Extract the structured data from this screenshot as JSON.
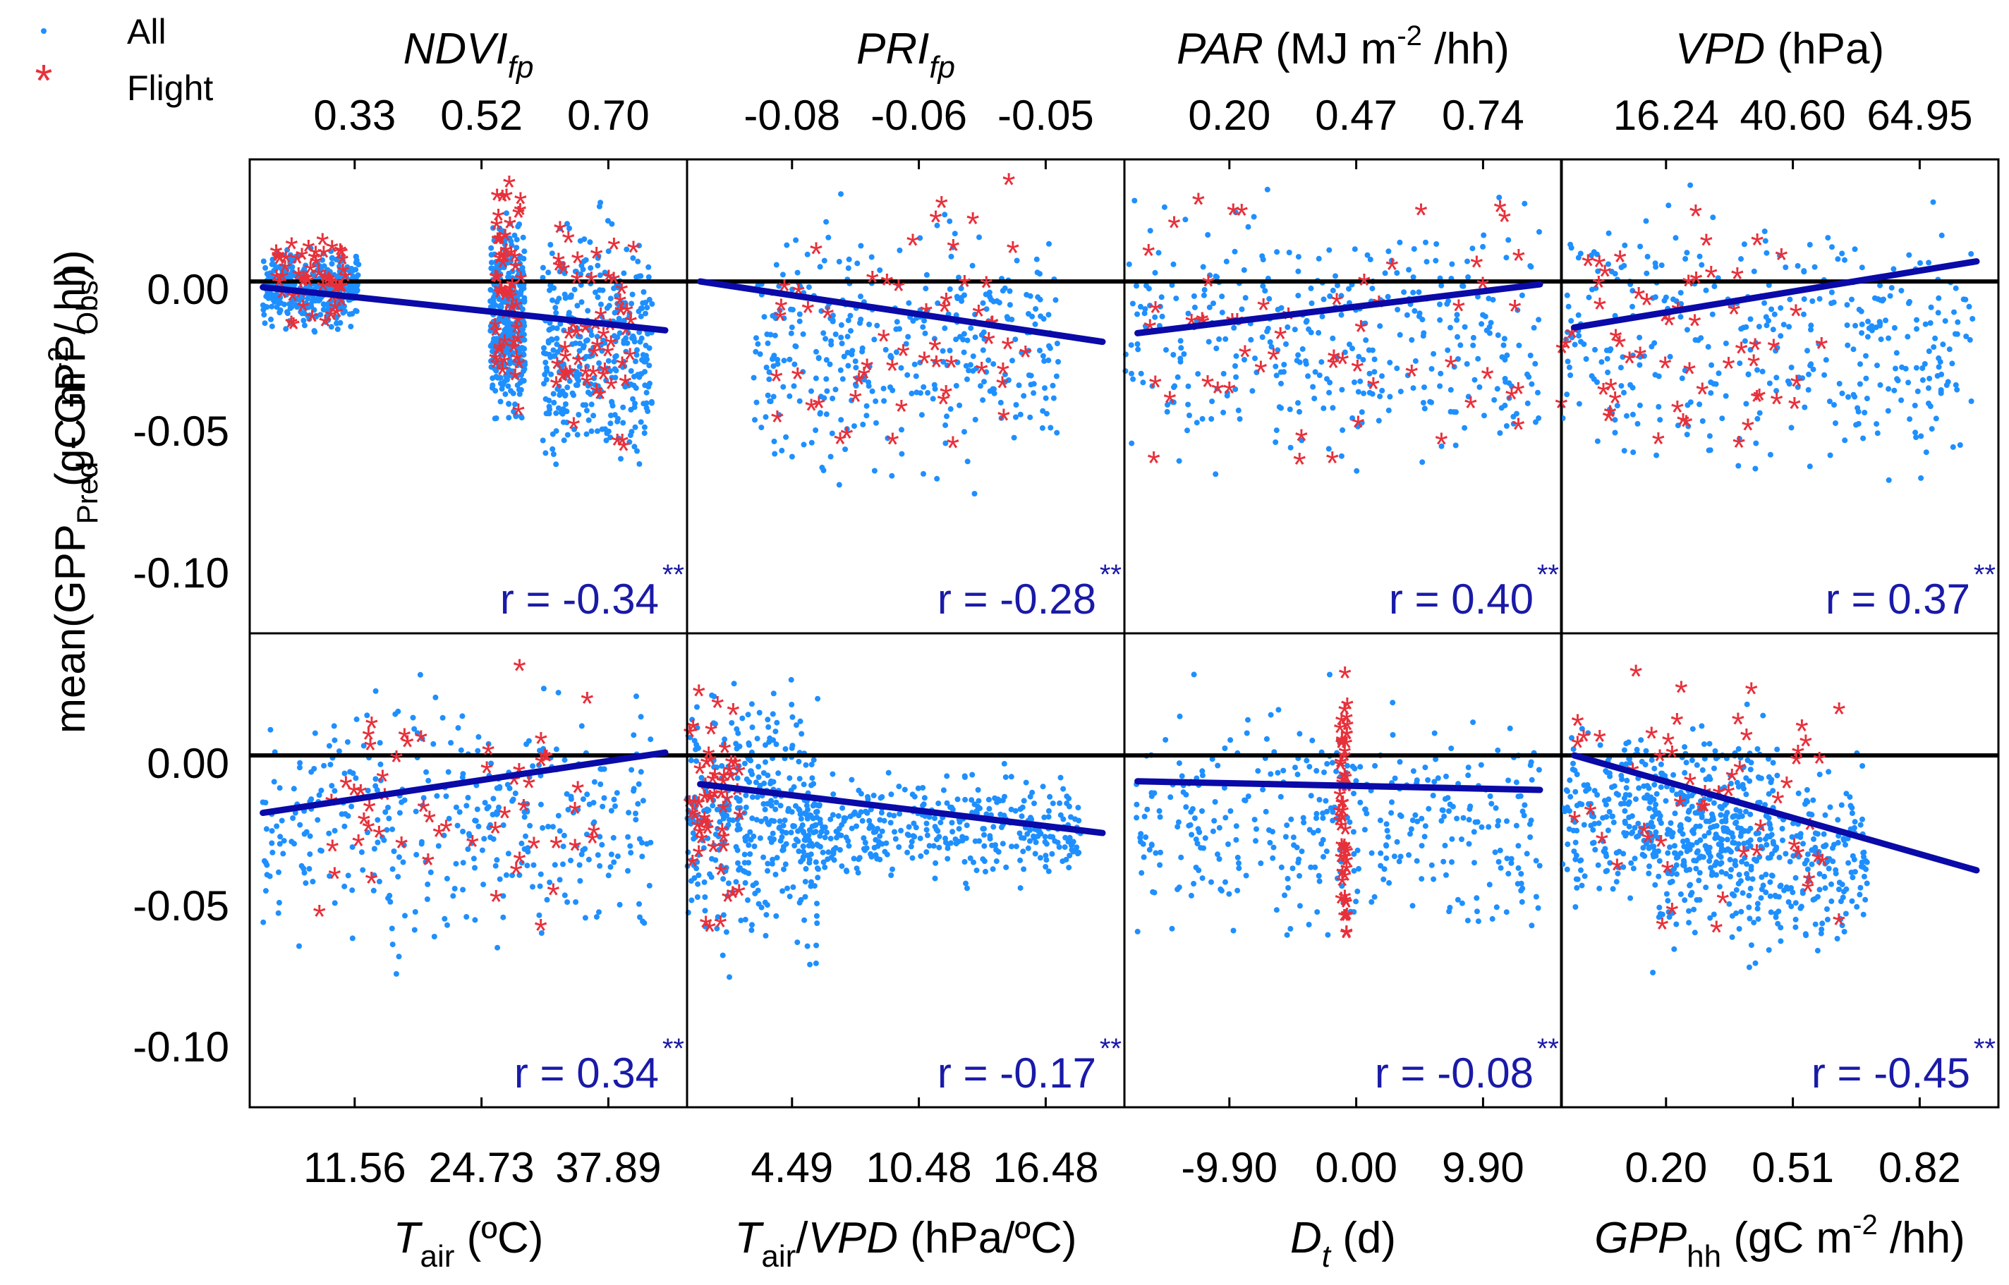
{
  "legend": {
    "all": "All",
    "flight": "Flight"
  },
  "colors": {
    "all": "#1e8fff",
    "flight": "#e8303a",
    "fit": "#0a0aa8",
    "zero": "#000000"
  },
  "y_label": {
    "part1": "mean(GPP",
    "sub_pred": "Pred",
    "part2": " - GPP",
    "sub_obs": "Obs",
    "part3": ")",
    "unit_a": "(gC m",
    "unit_sup": "-2",
    "unit_b": " / hh)"
  },
  "y_ticks": [
    "0.00",
    "-0.05",
    "-0.10"
  ],
  "stars": "**",
  "chart_data": [
    {
      "type": "scatter",
      "panel": "top-1",
      "ylim": [
        -0.1225,
        0.0425
      ],
      "xlabel_parts": [
        {
          "t": "NDVI",
          "i": true
        },
        {
          "t": "fp",
          "i": true,
          "sub": true
        }
      ],
      "ticks": [
        "0.33",
        "0.52",
        "0.70"
      ],
      "r": "r = -0.34",
      "fit": [
        -0.002,
        -0.017
      ],
      "clusters": [
        [
          0.03,
          0.25,
          -0.02,
          0.015
        ],
        [
          0.55,
          0.63,
          -0.06,
          0.03
        ],
        [
          0.67,
          0.92,
          -0.08,
          0.035
        ]
      ],
      "flight_clusters": [
        [
          0.06,
          0.22,
          -0.02,
          0.02
        ],
        [
          0.56,
          0.62,
          -0.05,
          0.038
        ],
        [
          0.7,
          0.88,
          -0.07,
          0.03
        ]
      ]
    },
    {
      "type": "scatter",
      "panel": "top-2",
      "ylim": [
        -0.1225,
        0.0425
      ],
      "xlabel_parts": [
        {
          "t": "PRI",
          "i": true
        },
        {
          "t": "fp",
          "i": true,
          "sub": true
        }
      ],
      "ticks": [
        "-0.08",
        "-0.06",
        "-0.05"
      ],
      "r": "r = -0.28",
      "fit": [
        0.0,
        -0.021
      ],
      "clusters": [
        [
          0.15,
          0.85,
          -0.08,
          0.035
        ]
      ],
      "flight_clusters": [
        [
          0.2,
          0.78,
          -0.07,
          0.038
        ]
      ]
    },
    {
      "type": "scatter",
      "panel": "top-3",
      "ylim": [
        -0.1225,
        0.0425
      ],
      "xlabel_parts": [
        {
          "t": "PAR",
          "i": true
        },
        {
          "t": " (MJ m"
        },
        {
          "t": "-2",
          "sup": true
        },
        {
          "t": " /hh)"
        }
      ],
      "ticks": [
        "0.20",
        "0.47",
        "0.74"
      ],
      "r": "r = 0.40",
      "fit": [
        -0.018,
        -0.001
      ],
      "clusters": [
        [
          0.0,
          0.95,
          -0.08,
          0.04
        ]
      ],
      "flight_clusters": [
        [
          0.05,
          0.92,
          -0.07,
          0.035
        ]
      ]
    },
    {
      "type": "scatter",
      "panel": "top-4",
      "ylim": [
        -0.1225,
        0.0425
      ],
      "xlabel_parts": [
        {
          "t": "VPD",
          "i": true
        },
        {
          "t": " (hPa)"
        }
      ],
      "ticks": [
        "16.24",
        "40.60",
        "64.95"
      ],
      "r": "r = 0.37",
      "fit": [
        -0.016,
        0.007
      ],
      "clusters": [
        [
          0.0,
          0.95,
          -0.08,
          0.04
        ]
      ],
      "flight_clusters": [
        [
          0.0,
          0.6,
          -0.07,
          0.035
        ]
      ]
    },
    {
      "type": "scatter",
      "panel": "bottom-1",
      "ylim": [
        -0.1225,
        0.0425
      ],
      "xlabel_parts": [
        {
          "t": "T",
          "i": true
        },
        {
          "t": "air",
          "sub": true
        },
        {
          "t": " (ºC)"
        }
      ],
      "ticks": [
        "11.56",
        "24.73",
        "37.89"
      ],
      "r": "r = 0.34",
      "fit": [
        -0.02,
        0.001
      ],
      "clusters": [
        [
          0.03,
          0.92,
          -0.08,
          0.035
        ]
      ],
      "flight_clusters": [
        [
          0.15,
          0.8,
          -0.07,
          0.033
        ]
      ]
    },
    {
      "type": "scatter",
      "panel": "bottom-2",
      "ylim": [
        -0.1225,
        0.0425
      ],
      "xlabel_parts": [
        {
          "t": "T",
          "i": true
        },
        {
          "t": "air",
          "sub": true
        },
        {
          "t": "/"
        },
        {
          "t": "VPD",
          "i": true
        },
        {
          "t": " (hPa/ºC)"
        }
      ],
      "ticks": [
        "4.49",
        "10.48",
        "16.48"
      ],
      "r": "r = -0.17",
      "fit": [
        -0.01,
        -0.027
      ],
      "clusters": [
        [
          0.0,
          0.3,
          -0.08,
          0.035
        ],
        [
          0.25,
          0.9,
          -0.05,
          0.0
        ]
      ],
      "flight_clusters": [
        [
          0.0,
          0.12,
          -0.07,
          0.035
        ]
      ]
    },
    {
      "type": "scatter",
      "panel": "bottom-3",
      "ylim": [
        -0.1225,
        0.0425
      ],
      "xlabel_parts": [
        {
          "t": "D",
          "i": true
        },
        {
          "t": "t",
          "i": true,
          "sub": true
        },
        {
          "t": " (d)"
        }
      ],
      "ticks": [
        "-9.90",
        "0.00",
        "9.90"
      ],
      "r": "r = -0.08",
      "fit": [
        -0.009,
        -0.012
      ],
      "clusters": [
        [
          0.02,
          0.95,
          -0.075,
          0.03
        ]
      ],
      "flight_clusters": [
        [
          0.49,
          0.51,
          -0.07,
          0.035
        ]
      ]
    },
    {
      "type": "scatter",
      "panel": "bottom-4",
      "ylim": [
        -0.1225,
        0.0425
      ],
      "xlabel_parts": [
        {
          "t": "GPP",
          "i": true
        },
        {
          "t": "hh",
          "sub": true
        },
        {
          "t": " (gC m"
        },
        {
          "t": "-2",
          "sup": true
        },
        {
          "t": " /hh)"
        }
      ],
      "ticks": [
        "0.20",
        "0.51",
        "0.82"
      ],
      "r": "r = -0.45",
      "fit": [
        0.0,
        -0.04
      ],
      "clusters": [
        [
          0.0,
          0.5,
          -0.06,
          0.02
        ],
        [
          0.2,
          0.7,
          -0.08,
          0.01
        ]
      ],
      "flight_clusters": [
        [
          0.0,
          0.65,
          -0.07,
          0.036
        ]
      ]
    }
  ]
}
